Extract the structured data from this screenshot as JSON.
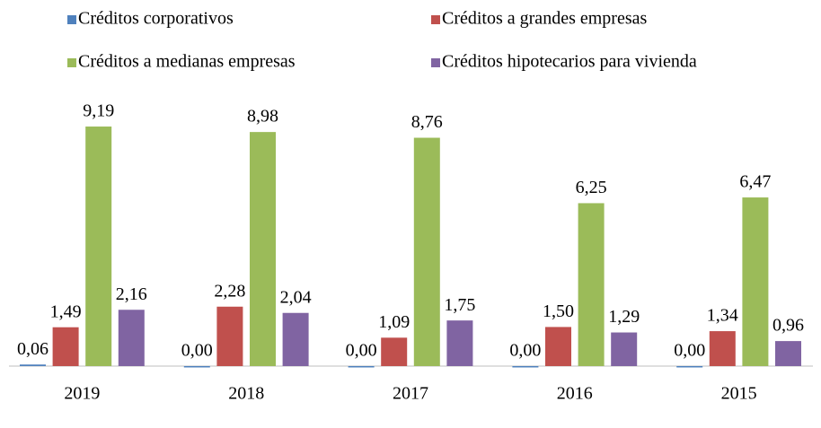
{
  "chart_data": {
    "type": "bar",
    "categories": [
      "2019",
      "2018",
      "2017",
      "2016",
      "2015"
    ],
    "series": [
      {
        "name": "Créditos corporativos",
        "color": "#4f81bd",
        "values": [
          0.06,
          0,
          0,
          0,
          0
        ],
        "value_labels": [
          "0,06",
          "0,00",
          "0,00",
          "0,00",
          "0,00"
        ]
      },
      {
        "name": "Créditos a grandes empresas",
        "color": "#c0504d",
        "values": [
          1.49,
          2.28,
          1.09,
          1.5,
          1.34
        ],
        "value_labels": [
          "1,49",
          "2,28",
          "1,09",
          "1,50",
          "1,34"
        ]
      },
      {
        "name": "Créditos a medianas empresas",
        "color": "#9bbb59",
        "values": [
          9.19,
          8.98,
          8.76,
          6.25,
          6.47
        ],
        "value_labels": [
          "9,19",
          "8,98",
          "8,76",
          "6,25",
          "6,47"
        ]
      },
      {
        "name": "Créditos hipotecarios para vivienda",
        "color": "#8064a2",
        "values": [
          2.16,
          2.04,
          1.75,
          1.29,
          0.96
        ],
        "value_labels": [
          "2,16",
          "2,04",
          "1,75",
          "1,29",
          "0,96"
        ]
      }
    ]
  }
}
